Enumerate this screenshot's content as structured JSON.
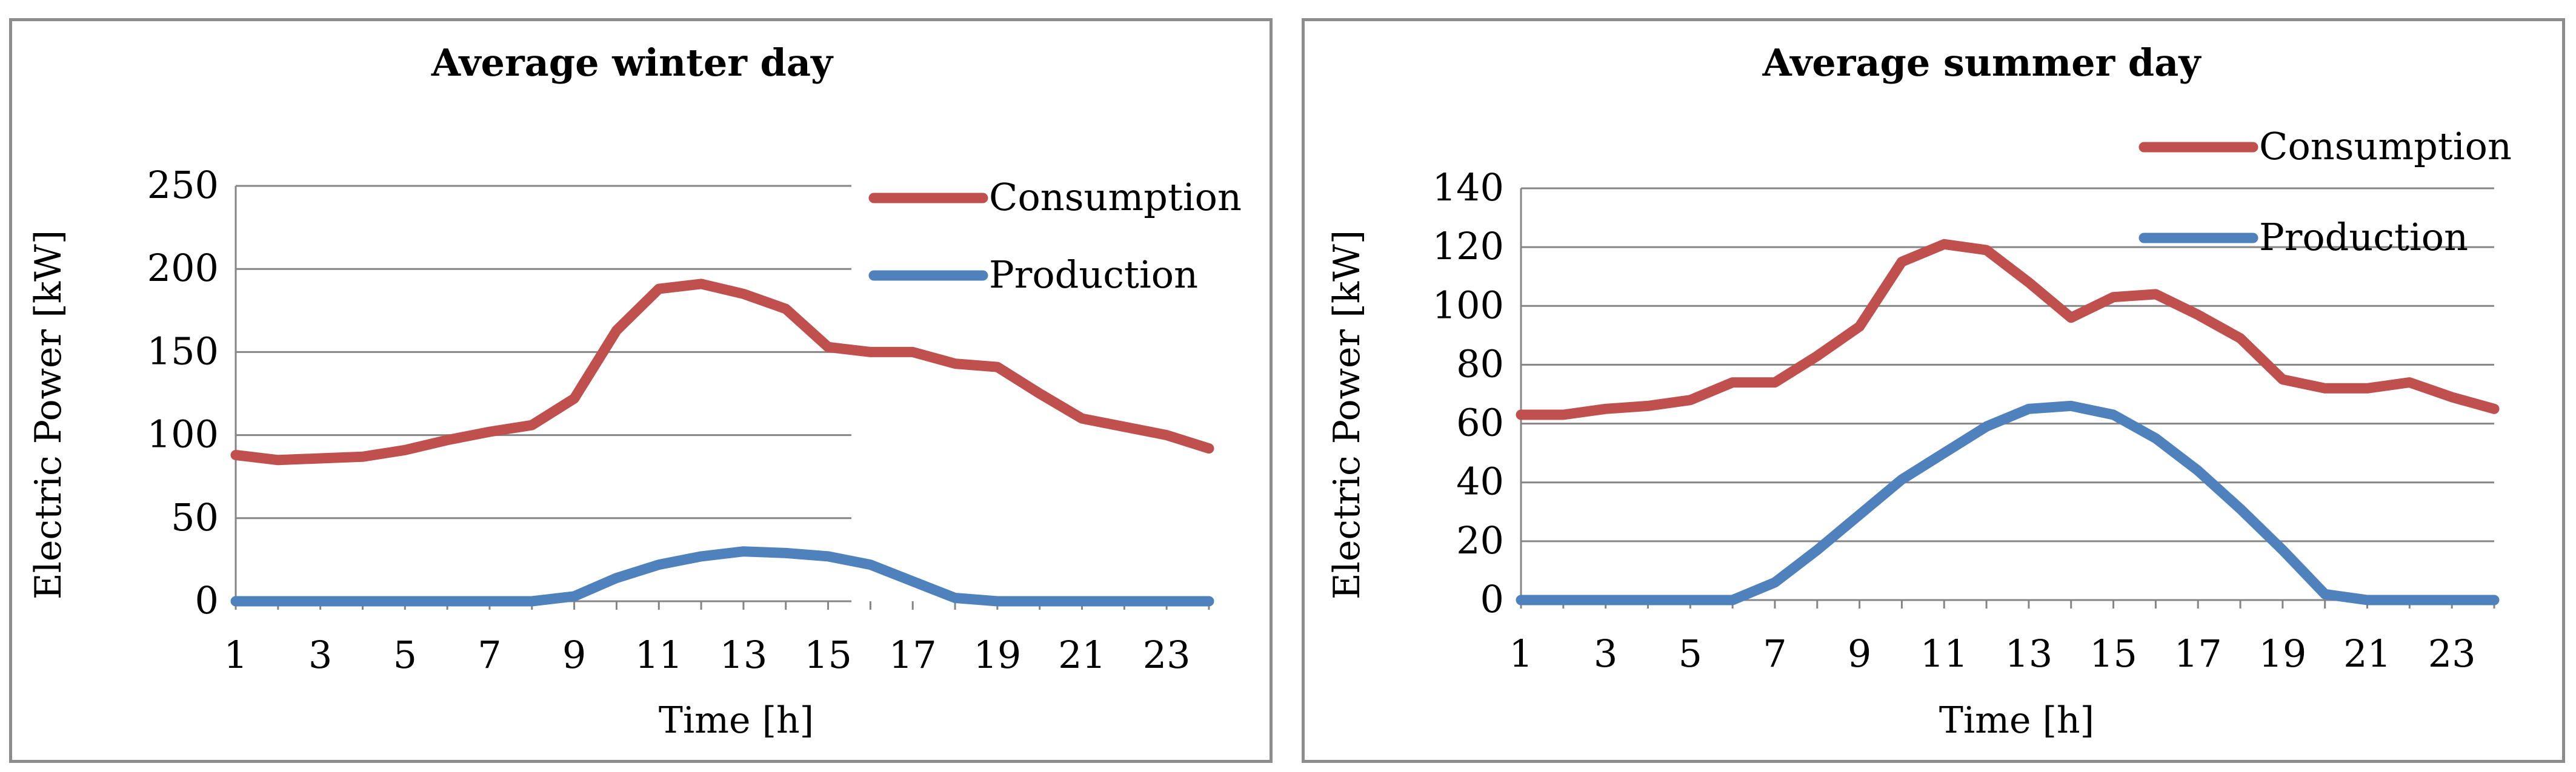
{
  "chart_data": [
    {
      "type": "line",
      "title": "Average winter day",
      "xlabel": "Time [h]",
      "ylabel": "Electric Power [kW]",
      "x": [
        1,
        2,
        3,
        4,
        5,
        6,
        7,
        8,
        9,
        10,
        11,
        12,
        13,
        14,
        15,
        16,
        17,
        18,
        19,
        20,
        21,
        22,
        23,
        24
      ],
      "x_tick_labels": [
        "1",
        "3",
        "5",
        "7",
        "9",
        "11",
        "13",
        "15",
        "17",
        "19",
        "21",
        "23"
      ],
      "ylim": [
        0,
        250
      ],
      "y_ticks": [
        0,
        50,
        100,
        150,
        200,
        250
      ],
      "grid": true,
      "legend_position": "top-right",
      "series": [
        {
          "name": "Consumption",
          "color": "#c0504d",
          "values": [
            88,
            85,
            86,
            87,
            91,
            97,
            102,
            106,
            122,
            163,
            188,
            191,
            185,
            176,
            153,
            150,
            150,
            143,
            141,
            125,
            110,
            105,
            100,
            92
          ]
        },
        {
          "name": "Production",
          "color": "#4f81bd",
          "values": [
            0,
            0,
            0,
            0,
            0,
            0,
            0,
            0,
            3,
            14,
            22,
            27,
            30,
            29,
            27,
            22,
            12,
            2,
            0,
            0,
            0,
            0,
            0,
            0
          ]
        }
      ]
    },
    {
      "type": "line",
      "title": "Average summer day",
      "xlabel": "Time [h]",
      "ylabel": "Electric Power [kW]",
      "x": [
        1,
        2,
        3,
        4,
        5,
        6,
        7,
        8,
        9,
        10,
        11,
        12,
        13,
        14,
        15,
        16,
        17,
        18,
        19,
        20,
        21,
        22,
        23,
        24
      ],
      "x_tick_labels": [
        "1",
        "3",
        "5",
        "7",
        "9",
        "11",
        "13",
        "15",
        "17",
        "19",
        "21",
        "23"
      ],
      "ylim": [
        0,
        140
      ],
      "y_ticks": [
        0,
        20,
        40,
        60,
        80,
        100,
        120,
        140
      ],
      "grid": true,
      "legend_position": "top-right",
      "series": [
        {
          "name": "Consumption",
          "color": "#c0504d",
          "values": [
            63,
            63,
            65,
            66,
            68,
            74,
            74,
            83,
            93,
            115,
            121,
            119,
            108,
            96,
            103,
            104,
            97,
            89,
            75,
            72,
            72,
            74,
            69,
            65
          ]
        },
        {
          "name": "Production",
          "color": "#4f81bd",
          "values": [
            0,
            0,
            0,
            0,
            0,
            0,
            6,
            17,
            29,
            41,
            50,
            59,
            65,
            66,
            63,
            55,
            44,
            31,
            17,
            2,
            0,
            0,
            0,
            0
          ]
        }
      ]
    }
  ]
}
